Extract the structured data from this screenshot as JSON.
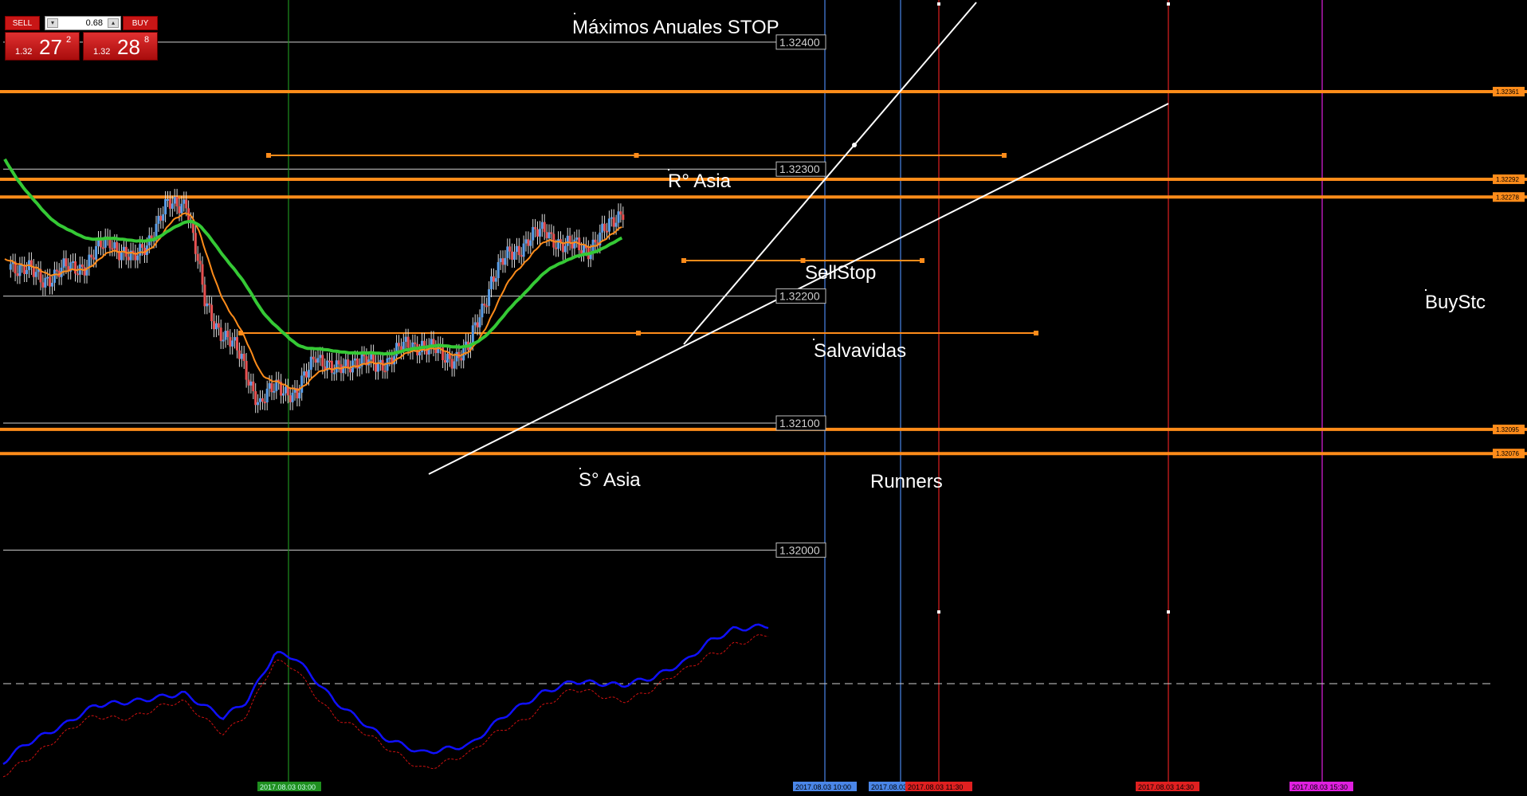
{
  "chart_data": {
    "type": "candlestick",
    "price_axis": {
      "min": 1.3195,
      "max": 1.3243
    },
    "price_labels": [
      "1.32400",
      "1.32300",
      "1.32200",
      "1.32100",
      "1.32000"
    ],
    "price_grid": [
      1.324,
      1.323,
      1.322,
      1.321,
      1.32
    ],
    "levels": [
      {
        "price": 1.32361,
        "label": "1.32361"
      },
      {
        "price": 1.32292,
        "label": "1.32292"
      },
      {
        "price": 1.32278,
        "label": "1.32278"
      },
      {
        "price": 1.32095,
        "label": "1.32095"
      },
      {
        "price": 1.32076,
        "label": "1.32076"
      }
    ],
    "annotations": [
      {
        "text": "Máximos Anuales STOP"
      },
      {
        "text": "R° Asia"
      },
      {
        "text": "SellStop"
      },
      {
        "text": "Salvavidas"
      },
      {
        "text": "S° Asia"
      },
      {
        "text": "Runners"
      },
      {
        "text": "BuyStc"
      }
    ],
    "time_markers": [
      {
        "label": "2017.08.03 03:00",
        "color": "#1f8f1f"
      },
      {
        "label": "2017.08.03 10:00",
        "color": "#4a86e8"
      },
      {
        "label": "2017.08.03",
        "color": "#4a86e8"
      },
      {
        "label": "2017.08.03 11:30",
        "color": "#e02020"
      },
      {
        "label": "2017.08.03 14:30",
        "color": "#e02020"
      },
      {
        "label": "2017.08.03 15:30",
        "color": "#e020e0"
      }
    ],
    "colors": {
      "bull": "#5a9ee8",
      "bear": "#e85050",
      "level": "#ff8c1a",
      "ema_fast": "#ff8c1a",
      "ema_slow": "#35c935",
      "osc_main": "#1010ff",
      "osc_signal": "#d01010"
    }
  },
  "trade_panel": {
    "sell_label": "SELL",
    "buy_label": "BUY",
    "lot": "0.68",
    "sell_price_small": "1.32",
    "sell_price_big": "27",
    "sell_price_sup": "2",
    "buy_price_small": "1.32",
    "buy_price_big": "28",
    "buy_price_sup": "8"
  }
}
